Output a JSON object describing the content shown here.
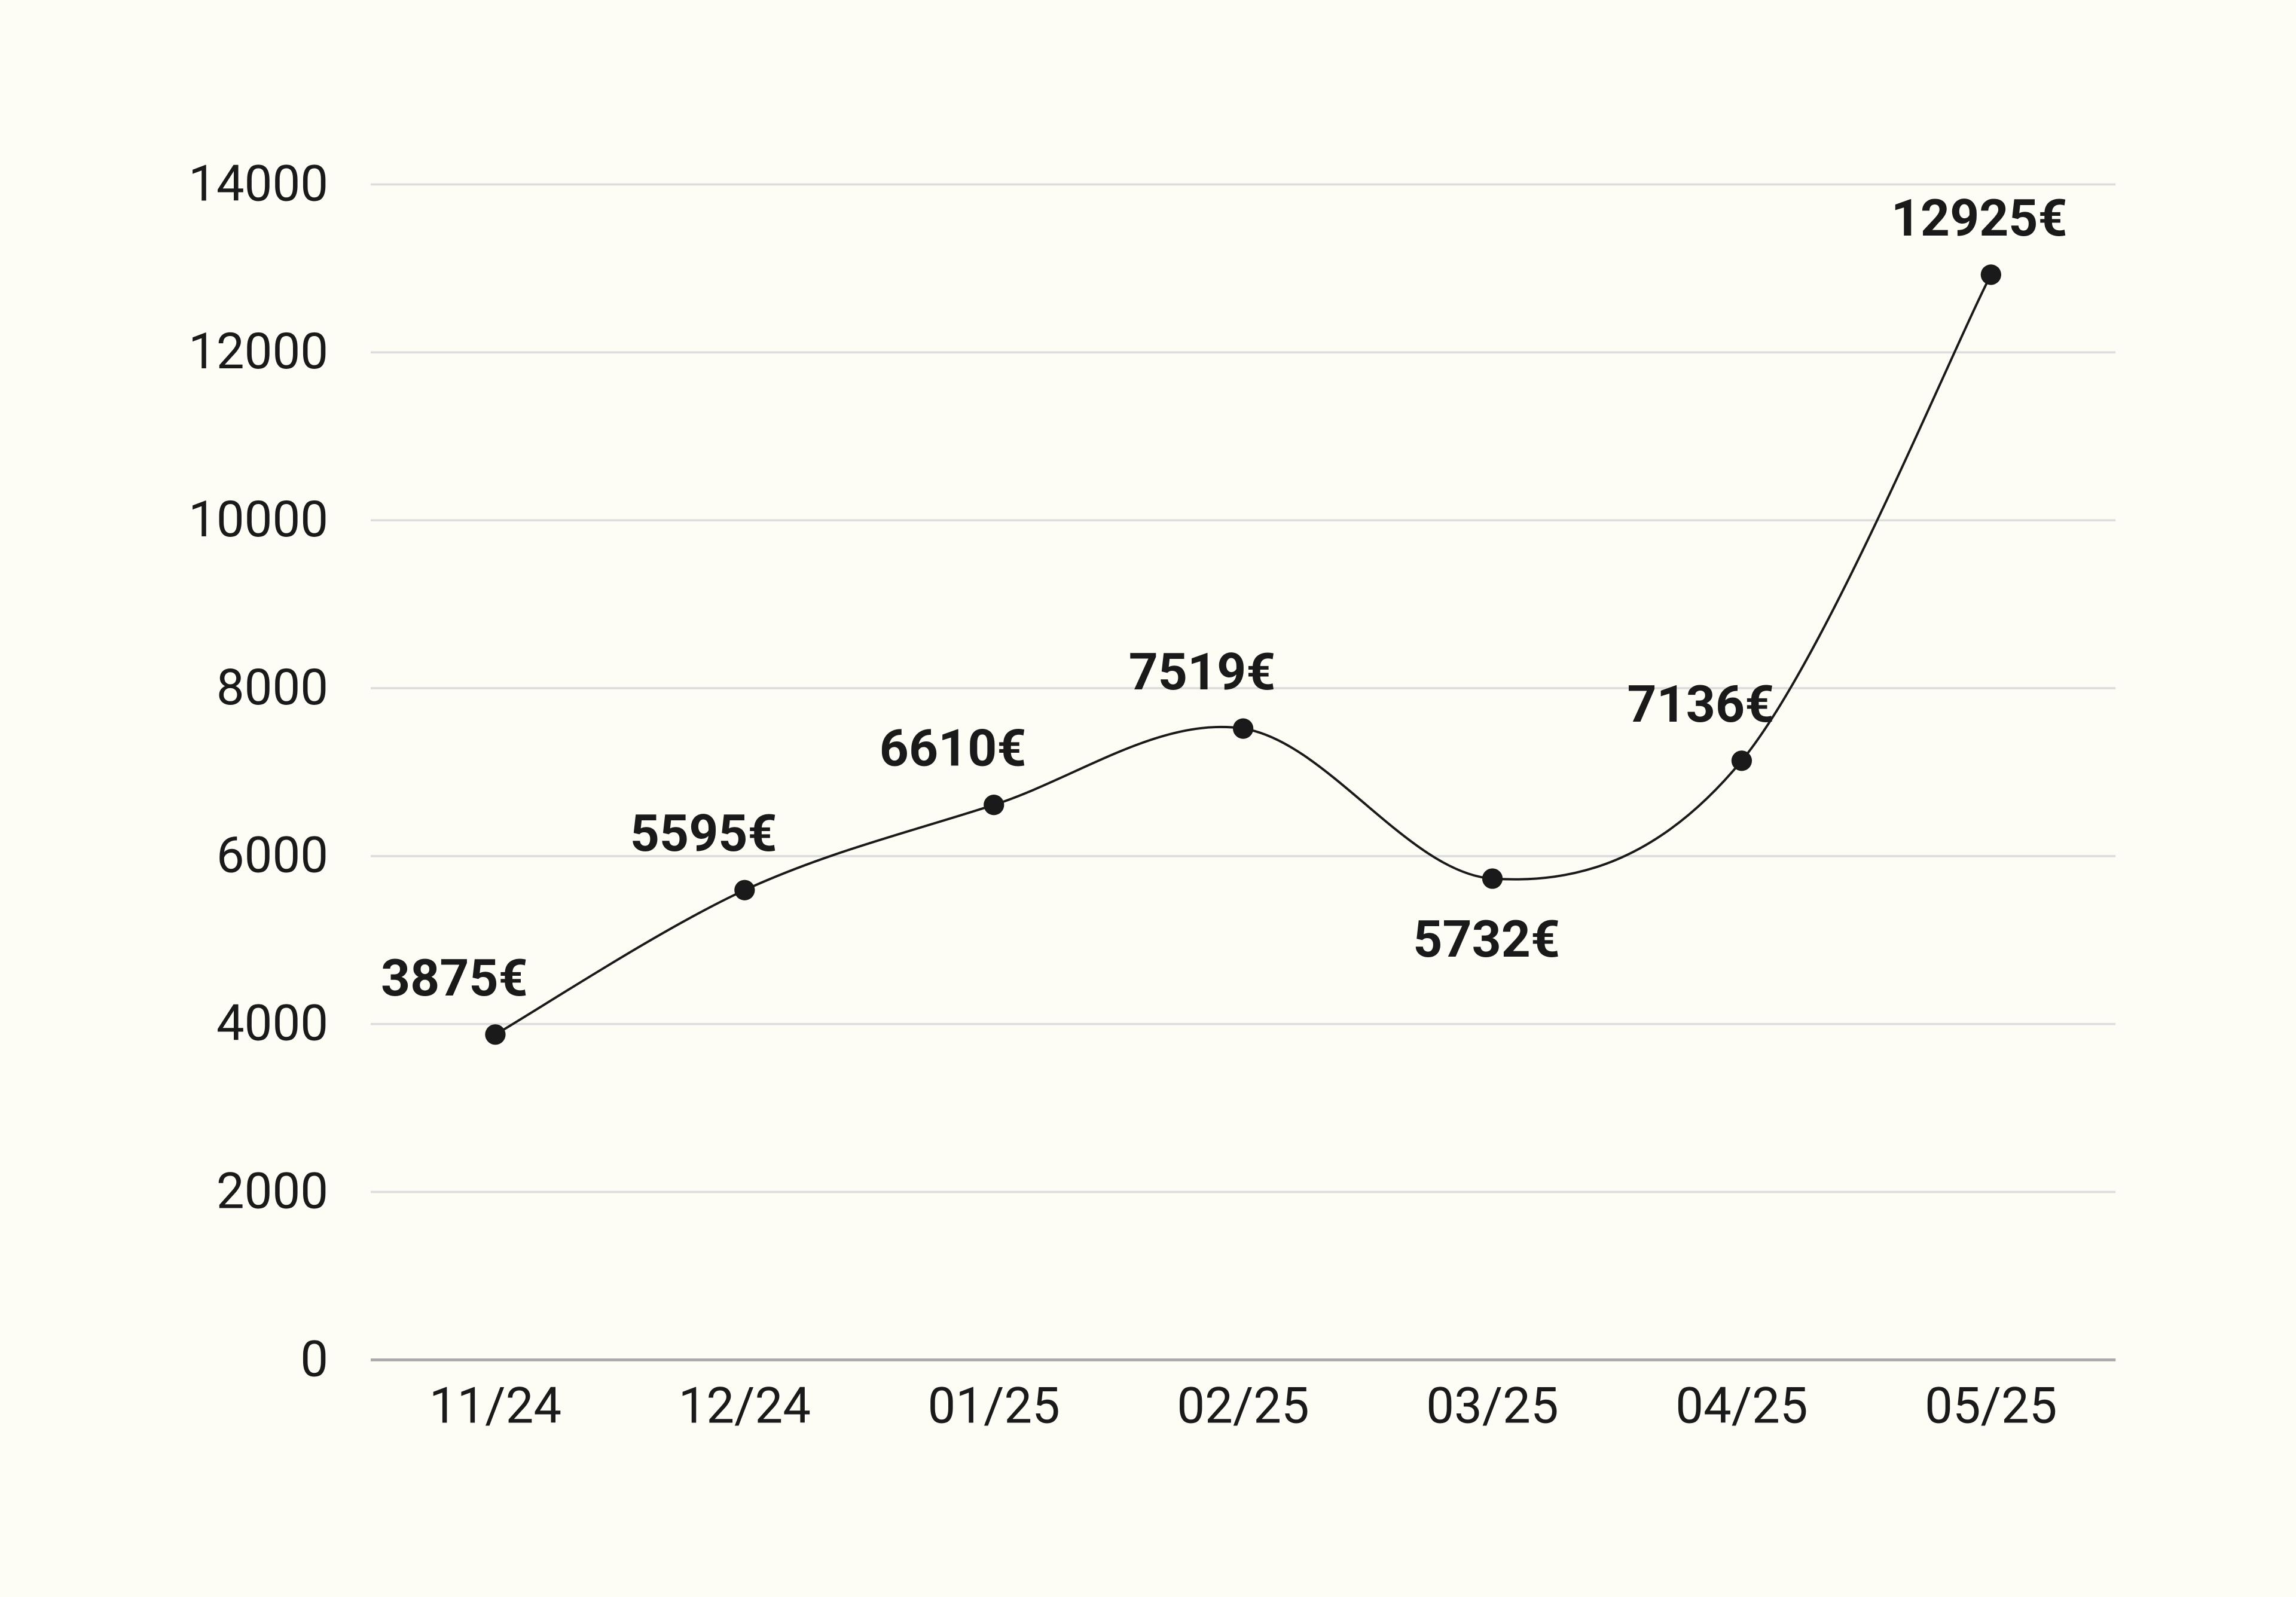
{
  "chart_data": {
    "type": "line",
    "categories": [
      "11/24",
      "12/24",
      "01/25",
      "02/25",
      "03/25",
      "04/25",
      "05/25"
    ],
    "values": [
      3875,
      5595,
      6610,
      7519,
      5732,
      7136,
      12925
    ],
    "value_labels": [
      "3875€",
      "5595€",
      "6610€",
      "7519€",
      "5732€",
      "7136€",
      "12925€"
    ],
    "color": "#1a1a1a",
    "ylim": [
      0,
      14000
    ],
    "yticks": [
      0,
      2000,
      4000,
      6000,
      8000,
      10000,
      12000,
      14000
    ],
    "grid": true,
    "smooth": true
  }
}
